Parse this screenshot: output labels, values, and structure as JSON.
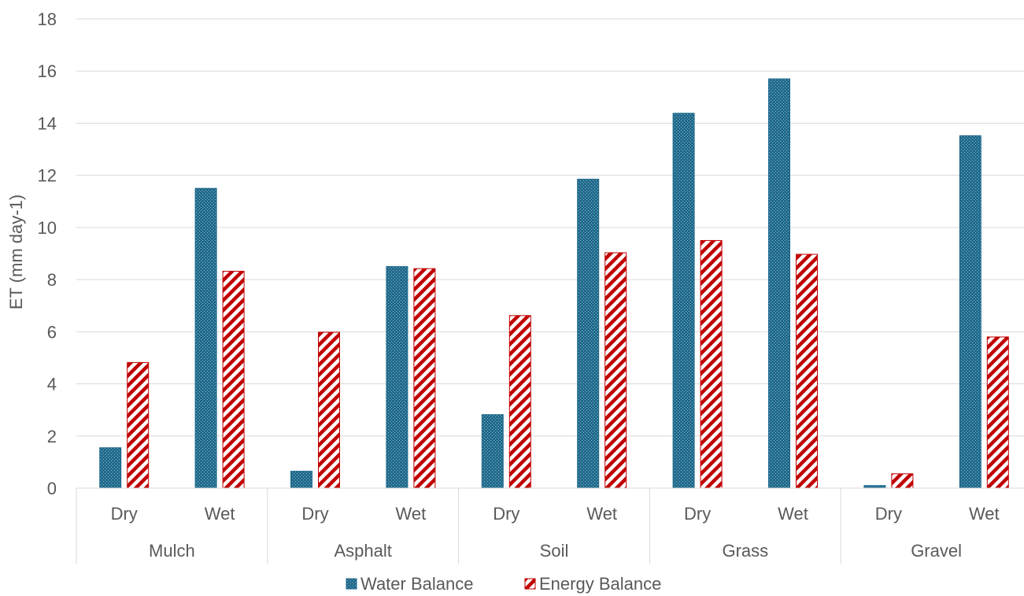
{
  "chart_data": {
    "type": "bar",
    "title": "",
    "ylabel": "ET (mm day-1)",
    "xlabel": "",
    "ylim": [
      0,
      18
    ],
    "yticks": [
      0,
      2,
      4,
      6,
      8,
      10,
      12,
      14,
      16,
      18
    ],
    "groups": [
      "Mulch",
      "Asphalt",
      "Soil",
      "Grass",
      "Gravel"
    ],
    "subcategories": [
      "Dry",
      "Wet",
      "Dry",
      "Wet",
      "Dry",
      "Wet",
      "Dry",
      "Wet",
      "Dry",
      "Wet"
    ],
    "grid": true,
    "legend_position": "bottom",
    "series": [
      {
        "name": "Water Balance",
        "color": "#1F6A8C",
        "pattern": "dotted",
        "values": [
          1.55,
          11.5,
          0.65,
          8.5,
          2.82,
          11.85,
          14.38,
          15.7,
          0.1,
          13.52
        ]
      },
      {
        "name": "Energy Balance",
        "color": "#C00000",
        "pattern": "diagonal-stripes",
        "values": [
          4.82,
          8.32,
          5.98,
          8.42,
          6.62,
          9.03,
          9.5,
          8.97,
          0.55,
          5.8
        ]
      }
    ]
  }
}
